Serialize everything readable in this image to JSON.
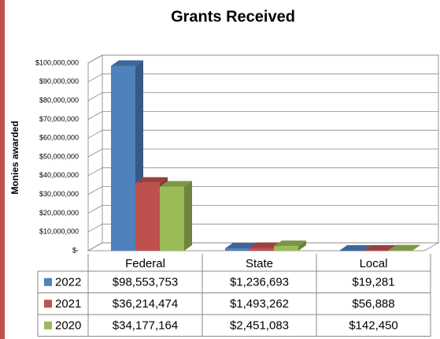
{
  "chart_data": {
    "type": "bar",
    "title": "Grants Received",
    "y_label": "Monies awarded",
    "categories": [
      "Federal",
      "State",
      "Local"
    ],
    "series": [
      {
        "name": "2022",
        "color": "#4f81bd",
        "values": [
          98553753,
          1236693,
          19281
        ],
        "value_labels": [
          "$98,553,753",
          "$1,236,693",
          "$19,281"
        ]
      },
      {
        "name": "2021",
        "color": "#c0504d",
        "values": [
          36214474,
          1493262,
          56888
        ],
        "value_labels": [
          "$36,214,474",
          "$1,493,262",
          "$56,888"
        ]
      },
      {
        "name": "2020",
        "color": "#9bbb59",
        "values": [
          34177164,
          2451083,
          142450
        ],
        "value_labels": [
          "$34,177,164",
          "$2,451,083",
          "$142,450"
        ]
      }
    ],
    "ylim": [
      0,
      100000000
    ],
    "yticks": [
      {
        "value": 0,
        "label": "$-"
      },
      {
        "value": 10000000,
        "label": "$10,000,000"
      },
      {
        "value": 20000000,
        "label": "$20,000,000"
      },
      {
        "value": 30000000,
        "label": "$30,000,000"
      },
      {
        "value": 40000000,
        "label": "$40,000,000"
      },
      {
        "value": 50000000,
        "label": "$50,000,000"
      },
      {
        "value": 60000000,
        "label": "$60,000,000"
      },
      {
        "value": 70000000,
        "label": "$70,000,000"
      },
      {
        "value": 80000000,
        "label": "$80,000,000"
      },
      {
        "value": 90000000,
        "label": "$90,000,000"
      },
      {
        "value": 100000000,
        "label": "$100,000,000"
      }
    ],
    "grid": true,
    "data_table": true
  }
}
